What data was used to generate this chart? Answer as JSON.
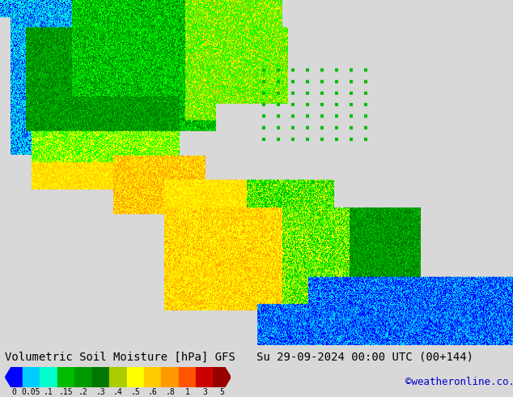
{
  "title_left": "Volumetric Soil Moisture [hPa] GFS",
  "title_right": "Su 29-09-2024 00:00 UTC (00+144)",
  "credit": "©weatheronline.co.uk",
  "colorbar_tick_labels": [
    "0",
    "0.05",
    ".1",
    ".15",
    ".2",
    ".3",
    ".4",
    ".5",
    ".6",
    ".8",
    "1",
    "3",
    "5"
  ],
  "colorbar_colors": [
    "#0000ff",
    "#00ccff",
    "#00ffcc",
    "#00bb00",
    "#009900",
    "#007700",
    "#aacc00",
    "#ffff00",
    "#ffcc00",
    "#ff9900",
    "#ff5500",
    "#cc0000",
    "#990000"
  ],
  "bg_color": "#d8d8d8",
  "water_color": "#d8d8d8",
  "font_family": "monospace",
  "title_fontsize": 10,
  "credit_fontsize": 9,
  "credit_color": "#0000cc",
  "map_colors": {
    "dark_green": "#007700",
    "med_green": "#00bb00",
    "bright_green": "#00ff00",
    "lt_green": "#aacc00",
    "yellow": "#ffff00",
    "orange_yel": "#ffcc00",
    "orange": "#ff9900",
    "red_orange": "#ff5500",
    "cyan": "#00ccff",
    "blue": "#0000ff",
    "teal": "#00ffcc",
    "dark_red": "#cc0000",
    "v_dark_red": "#990000"
  }
}
